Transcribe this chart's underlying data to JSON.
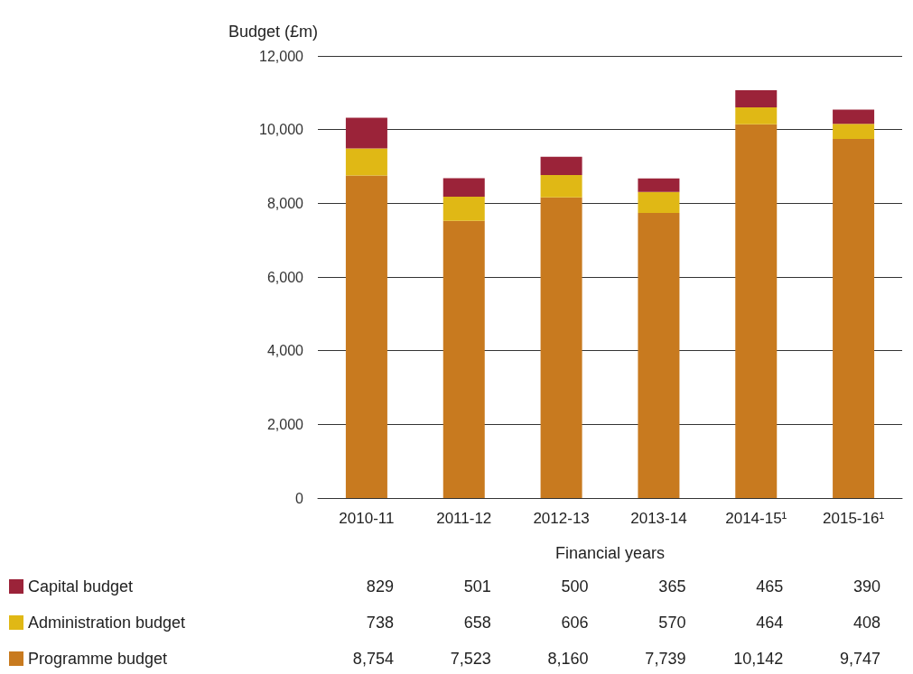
{
  "chart_data": {
    "type": "bar",
    "stacked": true,
    "xlabel": "Financial years",
    "ylabel": "Budget (£m)",
    "categories": [
      "2010-11",
      "2011-12",
      "2012-13",
      "2013-14",
      "2014-15¹",
      "2015-16¹"
    ],
    "series": [
      {
        "name": "Programme budget",
        "color": "#c87a1f",
        "values": [
          8754,
          7523,
          8160,
          7739,
          10142,
          9747
        ],
        "value_labels": [
          "8,754",
          "7,523",
          "8,160",
          "7,739",
          "10,142",
          "9,747"
        ]
      },
      {
        "name": "Administration budget",
        "color": "#e0b815",
        "values": [
          738,
          658,
          606,
          570,
          464,
          408
        ],
        "value_labels": [
          "738",
          "658",
          "606",
          "570",
          "464",
          "408"
        ]
      },
      {
        "name": "Capital budget",
        "color": "#9b2339",
        "values": [
          829,
          501,
          500,
          365,
          465,
          390
        ],
        "value_labels": [
          "829",
          "501",
          "500",
          "365",
          "465",
          "390"
        ]
      }
    ],
    "ylim": [
      0,
      12000
    ],
    "yticks": [
      0,
      {
        "value": 2000,
        "label": "2,000"
      },
      {
        "value": 4000,
        "label": "4,000"
      },
      {
        "value": 6000,
        "label": "6,000"
      },
      {
        "value": 8000,
        "label": "8,000"
      },
      {
        "value": 10000,
        "label": "10,000"
      },
      {
        "value": 12000,
        "label": "12,000"
      }
    ],
    "grid": "y",
    "legend": "bottom left"
  }
}
